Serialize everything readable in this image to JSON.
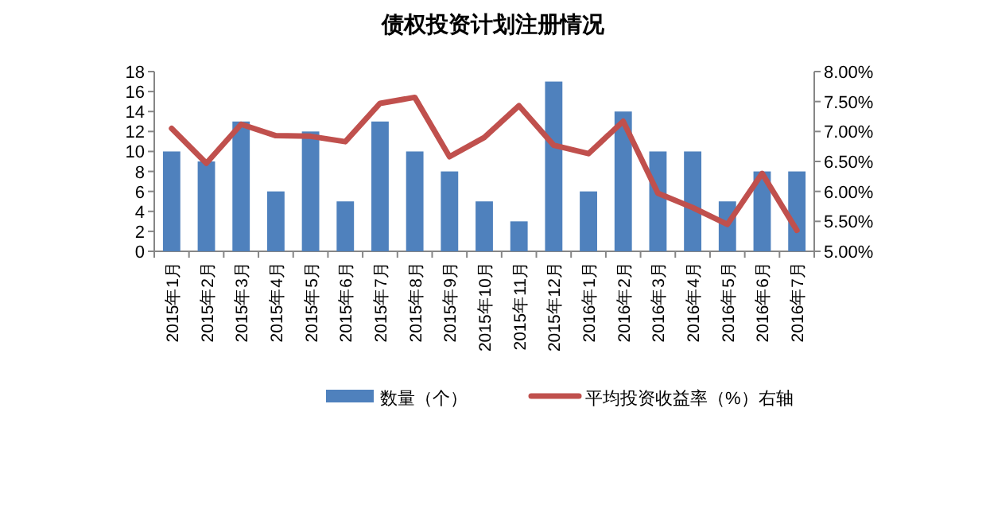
{
  "chart_data": {
    "type": "bar",
    "title": "债权投资计划注册情况",
    "categories": [
      "2015年1月",
      "2015年2月",
      "2015年3月",
      "2015年4月",
      "2015年5月",
      "2015年6月",
      "2015年7月",
      "2015年8月",
      "2015年9月",
      "2015年10月",
      "2015年11月",
      "2015年12月",
      "2016年1月",
      "2016年2月",
      "2016年3月",
      "2016年4月",
      "2016年5月",
      "2016年6月",
      "2016年7月"
    ],
    "series": [
      {
        "name": "数量（个）",
        "color": "#4f81bd",
        "values": [
          10,
          9,
          13,
          6,
          12,
          5,
          13,
          10,
          8,
          5,
          3,
          17,
          6,
          14,
          10,
          10,
          5,
          8,
          8
        ]
      },
      {
        "name": "平均投资收益率（%）右轴",
        "type": "line",
        "axis": "y2",
        "color": "#c0504d",
        "values": [
          7.05,
          6.47,
          7.12,
          6.93,
          6.92,
          6.83,
          7.47,
          7.57,
          6.58,
          6.9,
          7.43,
          6.77,
          6.63,
          7.17,
          5.97,
          5.73,
          5.45,
          6.3,
          5.35
        ]
      }
    ],
    "ylim": [
      0,
      18
    ],
    "yticks": [
      0,
      2,
      4,
      6,
      8,
      10,
      12,
      14,
      16,
      18
    ],
    "y2lim": [
      5,
      8
    ],
    "y2ticks": [
      {
        "value": 5,
        "label": "5.00%"
      },
      {
        "value": 5.5,
        "label": "5.50%"
      },
      {
        "value": 6,
        "label": "6.00%"
      },
      {
        "value": 6.5,
        "label": "6.50%"
      },
      {
        "value": 7,
        "label": "7.00%"
      },
      {
        "value": 7.5,
        "label": "7.50%"
      },
      {
        "value": 8,
        "label": "8.00%"
      }
    ],
    "grid": false,
    "legend": "bottom",
    "marker": "none",
    "line_style": "solid"
  }
}
